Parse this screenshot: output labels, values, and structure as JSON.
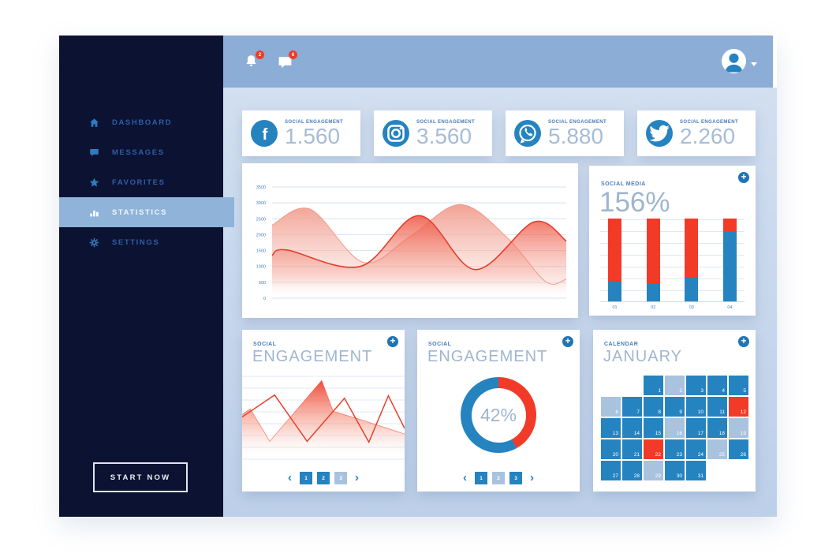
{
  "icons": {
    "plus": "+",
    "chevron_left": "‹",
    "chevron_right": "›",
    "facebook_glyph": "f"
  },
  "sidebar": {
    "items": [
      {
        "label": "DASHBOARD",
        "icon": "home-icon"
      },
      {
        "label": "MESSAGES",
        "icon": "chat-icon"
      },
      {
        "label": "FAVORITES",
        "icon": "star-icon"
      },
      {
        "label": "STATISTICS",
        "icon": "stats-icon"
      },
      {
        "label": "SETTINGS",
        "icon": "gear-icon"
      }
    ],
    "active_item": "STATISTICS",
    "cta": "START NOW"
  },
  "topbar": {
    "notifications": {
      "bell_count": "2",
      "chat_count": "6"
    }
  },
  "stat_cards": [
    {
      "network": "facebook",
      "label": "SOCIAL ENGAGEMENT",
      "value": "1.560"
    },
    {
      "network": "instagram",
      "label": "SOCIAL ENGAGEMENT",
      "value": "3.560"
    },
    {
      "network": "whatsapp",
      "label": "SOCIAL ENGAGEMENT",
      "value": "5.880"
    },
    {
      "network": "twitter",
      "label": "SOCIAL ENGAGEMENT",
      "value": "2.260"
    }
  ],
  "cards": {
    "social_media": {
      "label": "SOCIAL MEDIA",
      "value": "156%"
    },
    "engagement_line": {
      "label": "SOCIAL",
      "title": "ENGAGEMENT",
      "pages": [
        {
          "n": "1",
          "v": "on"
        },
        {
          "n": "2",
          "v": "on"
        },
        {
          "n": "3",
          "v": "off"
        }
      ]
    },
    "engagement_donut": {
      "label": "SOCIAL",
      "title": "ENGAGEMENT",
      "pages": [
        {
          "n": "1",
          "v": "on"
        },
        {
          "n": "2",
          "v": "off"
        },
        {
          "n": "3",
          "v": "on"
        }
      ]
    },
    "calendar": {
      "label": "CALENDAR",
      "title": "JANUARY",
      "days": [
        {
          "d": "",
          "v": "blank"
        },
        {
          "d": "",
          "v": "blank"
        },
        {
          "d": "1",
          "v": "n"
        },
        {
          "d": "2",
          "v": "l"
        },
        {
          "d": "3",
          "v": "n"
        },
        {
          "d": "4",
          "v": "n"
        },
        {
          "d": "5",
          "v": "n"
        },
        {
          "d": "6",
          "v": "l"
        },
        {
          "d": "7",
          "v": "n"
        },
        {
          "d": "8",
          "v": "n"
        },
        {
          "d": "9",
          "v": "n"
        },
        {
          "d": "10",
          "v": "n"
        },
        {
          "d": "11",
          "v": "n"
        },
        {
          "d": "12",
          "v": "r"
        },
        {
          "d": "13",
          "v": "n"
        },
        {
          "d": "14",
          "v": "n"
        },
        {
          "d": "15",
          "v": "n"
        },
        {
          "d": "16",
          "v": "l"
        },
        {
          "d": "17",
          "v": "n"
        },
        {
          "d": "18",
          "v": "n"
        },
        {
          "d": "19",
          "v": "l"
        },
        {
          "d": "20",
          "v": "n"
        },
        {
          "d": "21",
          "v": "n"
        },
        {
          "d": "22",
          "v": "r"
        },
        {
          "d": "23",
          "v": "n"
        },
        {
          "d": "24",
          "v": "n"
        },
        {
          "d": "25",
          "v": "l"
        },
        {
          "d": "26",
          "v": "n"
        },
        {
          "d": "27",
          "v": "n"
        },
        {
          "d": "28",
          "v": "n"
        },
        {
          "d": "29",
          "v": "l"
        },
        {
          "d": "30",
          "v": "n"
        },
        {
          "d": "31",
          "v": "n"
        }
      ]
    }
  },
  "chart_data": [
    {
      "type": "area",
      "title": "",
      "yticks": [
        0,
        500,
        1000,
        1500,
        2000,
        2500,
        3000,
        3500
      ],
      "ylim": [
        0,
        3500
      ],
      "grid": true,
      "series": [
        {
          "name": "wave-back",
          "color": "#f4a093",
          "points": [
            [
              0,
              2300
            ],
            [
              13,
              2800
            ],
            [
              31,
              1130
            ],
            [
              47,
              1950
            ],
            [
              64,
              2950
            ],
            [
              80,
              1900
            ],
            [
              93,
              520
            ],
            [
              100,
              600
            ]
          ]
        },
        {
          "name": "wave-front",
          "color": "#e8432f",
          "points": [
            [
              0,
              1350
            ],
            [
              5,
              1520
            ],
            [
              30,
              1000
            ],
            [
              50,
              2600
            ],
            [
              69,
              900
            ],
            [
              89,
              2400
            ],
            [
              100,
              1800
            ]
          ]
        }
      ]
    },
    {
      "type": "stacked-bar",
      "categories": [
        "01",
        "02",
        "03",
        "04"
      ],
      "ylim": [
        0,
        100
      ],
      "series": [
        {
          "name": "red-top",
          "color": "#f13b28",
          "values": [
            75,
            78,
            70,
            16
          ]
        },
        {
          "name": "blue-bottom",
          "color": "#2583c0",
          "values": [
            25,
            22,
            30,
            84
          ]
        }
      ]
    },
    {
      "type": "line",
      "grid": true,
      "ylim": [
        0,
        100
      ],
      "series": [
        {
          "name": "filled-peaks",
          "color": "#f0402c",
          "fill": true,
          "points": [
            [
              0,
              53
            ],
            [
              5,
              60
            ],
            [
              17,
              20
            ],
            [
              49,
              95
            ],
            [
              56,
              57
            ],
            [
              71,
              48
            ],
            [
              100,
              29
            ]
          ]
        },
        {
          "name": "zigzag-line",
          "color": "#e8402c",
          "fill": false,
          "points": [
            [
              0,
              50
            ],
            [
              20,
              77
            ],
            [
              40,
              20
            ],
            [
              63,
              73
            ],
            [
              78,
              19
            ],
            [
              90,
              76
            ],
            [
              100,
              36
            ]
          ]
        }
      ]
    },
    {
      "type": "pie",
      "labels": [
        "engaged",
        "remaining"
      ],
      "values": [
        42,
        58
      ],
      "colors": [
        "#f13b28",
        "#2583c0"
      ],
      "center_label": "42%"
    }
  ]
}
